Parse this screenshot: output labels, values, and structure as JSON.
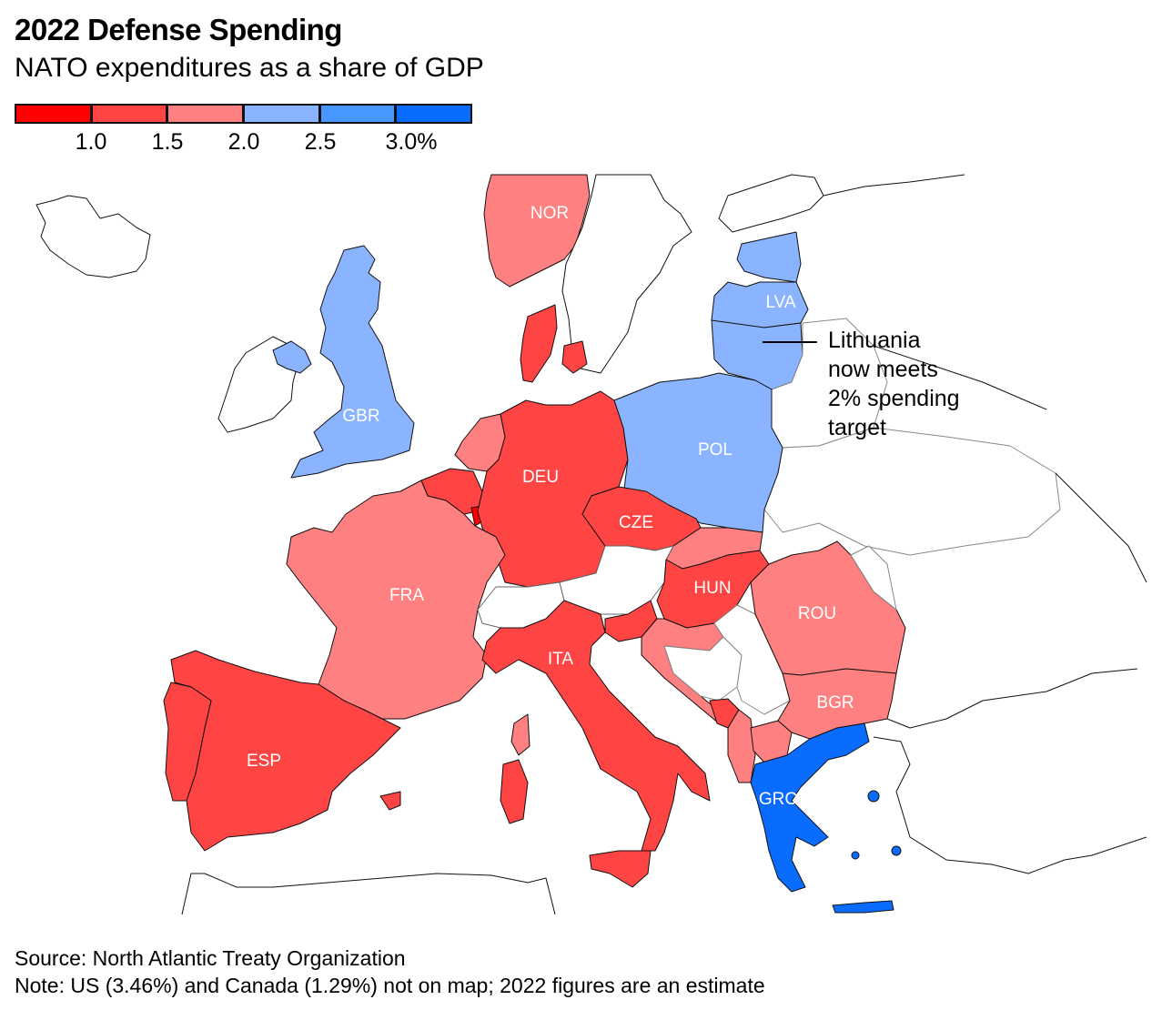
{
  "header": {
    "title": "2022 Defense Spending",
    "subtitle": "NATO expenditures as a share of GDP"
  },
  "legend": {
    "bins": [
      {
        "range": "< 1.0",
        "color": "#ff0000"
      },
      {
        "range": "1.0–1.5",
        "color": "#ff4444"
      },
      {
        "range": "1.5–2.0",
        "color": "#ff8080"
      },
      {
        "range": "2.0–2.5",
        "color": "#8ab4ff"
      },
      {
        "range": "2.5–3.0",
        "color": "#4896ff"
      },
      {
        "range": "≥ 3.0",
        "color": "#0a6cff"
      }
    ],
    "ticks": [
      "1.0",
      "1.5",
      "2.0",
      "2.5",
      "3.0%"
    ]
  },
  "chart_data": {
    "type": "choropleth",
    "title": "2022 Defense Spending",
    "subtitle": "NATO expenditures as a share of GDP",
    "unit": "% of GDP",
    "thresholds": [
      1.0,
      1.5,
      2.0,
      2.5,
      3.0
    ],
    "countries": [
      {
        "code": "NOR",
        "bin": "1.5–2.0",
        "labeled": true
      },
      {
        "code": "GBR",
        "bin": "2.0–2.5",
        "labeled": true
      },
      {
        "code": "LVA",
        "bin": "2.0–2.5",
        "labeled": true
      },
      {
        "code": "POL",
        "bin": "2.0–2.5",
        "labeled": true
      },
      {
        "code": "DEU",
        "bin": "1.0–1.5",
        "labeled": true
      },
      {
        "code": "CZE",
        "bin": "1.0–1.5",
        "labeled": true
      },
      {
        "code": "FRA",
        "bin": "1.5–2.0",
        "labeled": true
      },
      {
        "code": "HUN",
        "bin": "1.0–1.5",
        "labeled": true
      },
      {
        "code": "ROU",
        "bin": "1.5–2.0",
        "labeled": true
      },
      {
        "code": "ITA",
        "bin": "1.0–1.5",
        "labeled": true
      },
      {
        "code": "BGR",
        "bin": "1.5–2.0",
        "labeled": true
      },
      {
        "code": "ESP",
        "bin": "1.0–1.5",
        "labeled": true
      },
      {
        "code": "GRC",
        "bin": "≥ 3.0",
        "labeled": true
      },
      {
        "code": "EST",
        "bin": "2.0–2.5",
        "labeled": false
      },
      {
        "code": "LTU",
        "bin": "2.0–2.5",
        "labeled": false
      },
      {
        "code": "DNK",
        "bin": "1.0–1.5",
        "labeled": false
      },
      {
        "code": "NLD",
        "bin": "1.5–2.0",
        "labeled": false
      },
      {
        "code": "BEL",
        "bin": "1.0–1.5",
        "labeled": false
      },
      {
        "code": "LUX",
        "bin": "< 1.0",
        "labeled": false
      },
      {
        "code": "PRT",
        "bin": "1.0–1.5",
        "labeled": false
      },
      {
        "code": "SVK",
        "bin": "1.5–2.0",
        "labeled": false
      },
      {
        "code": "SVN",
        "bin": "1.0–1.5",
        "labeled": false
      },
      {
        "code": "HRV",
        "bin": "1.5–2.0",
        "labeled": false
      },
      {
        "code": "MNE",
        "bin": "1.0–1.5",
        "labeled": false
      },
      {
        "code": "ALB",
        "bin": "1.5–2.0",
        "labeled": false
      },
      {
        "code": "MKD",
        "bin": "1.5–2.0",
        "labeled": false
      }
    ]
  },
  "map": {
    "labels": [
      "NOR",
      "GBR",
      "LVA",
      "POL",
      "DEU",
      "CZE",
      "FRA",
      "HUN",
      "ROU",
      "ITA",
      "BGR",
      "ESP",
      "GRC"
    ]
  },
  "annotation": {
    "lines": [
      "Lithuania",
      "now meets",
      "2% spending",
      "target"
    ]
  },
  "footer": {
    "source": "Source: North Atlantic Treaty Organization",
    "note": "Note: US (3.46%) and Canada (1.29%) not on map; 2022 figures are an estimate"
  }
}
